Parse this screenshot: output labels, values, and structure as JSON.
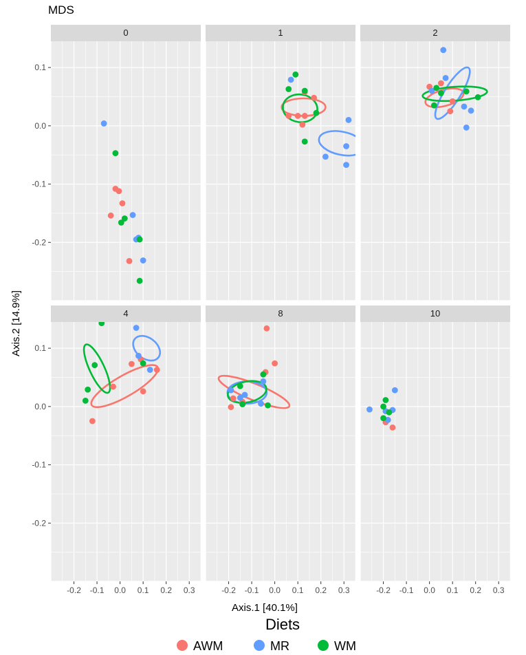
{
  "chart_data": {
    "type": "scatter",
    "title": "MDS",
    "xlabel": "Axis.1   [40.1%]",
    "ylabel": "Axis.2   [14.9%]",
    "xlim": [
      -0.3,
      0.35
    ],
    "ylim": [
      -0.3,
      0.145
    ],
    "x_ticks": [
      -0.2,
      -0.1,
      0.0,
      0.1,
      0.2,
      0.3
    ],
    "x_tick_labels": [
      "-0.2",
      "-0.1",
      "0.0",
      "0.1",
      "0.2",
      "0.3"
    ],
    "y_ticks": [
      -0.2,
      -0.1,
      0.0,
      0.1
    ],
    "y_tick_labels": [
      "-0.2",
      "-0.1",
      "0.0",
      "0.1"
    ],
    "legend": {
      "title": "Diets",
      "position": "bottom",
      "entries": [
        {
          "name": "AWM",
          "color": "#f8766d"
        },
        {
          "name": "MR",
          "color": "#619cff"
        },
        {
          "name": "WM",
          "color": "#00ba38"
        }
      ]
    },
    "panels": [
      {
        "label": "0",
        "series": [
          {
            "name": "AWM",
            "points": [
              [
                -0.02,
                -0.108
              ],
              [
                -0.005,
                -0.112
              ],
              [
                0.01,
                -0.133
              ],
              [
                -0.04,
                -0.154
              ],
              [
                0.04,
                -0.232
              ]
            ]
          },
          {
            "name": "MR",
            "points": [
              [
                -0.07,
                0.004
              ],
              [
                0.055,
                -0.153
              ],
              [
                0.07,
                -0.195
              ],
              [
                0.08,
                -0.192
              ],
              [
                0.1,
                -0.231
              ]
            ]
          },
          {
            "name": "WM",
            "points": [
              [
                -0.02,
                -0.047
              ],
              [
                0.02,
                -0.159
              ],
              [
                0.005,
                -0.166
              ],
              [
                0.085,
                -0.195
              ],
              [
                0.085,
                -0.266
              ]
            ]
          }
        ],
        "ellipses": []
      },
      {
        "label": "1",
        "series": [
          {
            "name": "AWM",
            "points": [
              [
                0.06,
                0.017
              ],
              [
                0.1,
                0.017
              ],
              [
                0.13,
                0.058
              ],
              [
                0.17,
                0.048
              ],
              [
                0.13,
                0.017
              ],
              [
                0.12,
                0.002
              ]
            ]
          },
          {
            "name": "MR",
            "points": [
              [
                0.22,
                -0.053
              ],
              [
                0.31,
                -0.035
              ],
              [
                0.32,
                0.01
              ],
              [
                0.31,
                -0.067
              ],
              [
                0.07,
                0.079
              ]
            ]
          },
          {
            "name": "WM",
            "points": [
              [
                0.09,
                0.088
              ],
              [
                0.06,
                0.063
              ],
              [
                0.13,
                0.06
              ],
              [
                0.18,
                0.022
              ],
              [
                0.13,
                -0.027
              ]
            ]
          }
        ],
        "ellipses": [
          {
            "name": "AWM",
            "cx": 0.125,
            "cy": 0.032,
            "rx": 0.095,
            "ry": 0.038,
            "angle": 0
          },
          {
            "name": "MR",
            "cx": 0.29,
            "cy": -0.03,
            "rx": 0.1,
            "ry": 0.05,
            "angle": -12
          },
          {
            "name": "WM",
            "cx": 0.11,
            "cy": 0.03,
            "rx": 0.075,
            "ry": 0.06,
            "angle": -8
          }
        ]
      },
      {
        "label": "2",
        "series": [
          {
            "name": "AWM",
            "points": [
              [
                0.0,
                0.067
              ],
              [
                0.05,
                0.073
              ],
              [
                0.1,
                0.042
              ],
              [
                0.09,
                0.025
              ]
            ]
          },
          {
            "name": "MR",
            "points": [
              [
                0.06,
                0.13
              ],
              [
                0.07,
                0.082
              ],
              [
                0.15,
                0.033
              ],
              [
                0.18,
                0.026
              ],
              [
                0.16,
                -0.003
              ],
              [
                0.01,
                0.06
              ]
            ]
          },
          {
            "name": "WM",
            "points": [
              [
                0.02,
                0.035
              ],
              [
                0.05,
                0.056
              ],
              [
                0.16,
                0.059
              ],
              [
                0.21,
                0.049
              ],
              [
                0.03,
                0.065
              ]
            ]
          }
        ],
        "ellipses": [
          {
            "name": "AWM",
            "cx": 0.065,
            "cy": 0.048,
            "rx": 0.085,
            "ry": 0.035,
            "angle": 15
          },
          {
            "name": "MR",
            "cx": 0.1,
            "cy": 0.056,
            "rx": 0.13,
            "ry": 0.035,
            "angle": 58
          },
          {
            "name": "WM",
            "cx": 0.11,
            "cy": 0.055,
            "rx": 0.14,
            "ry": 0.03,
            "angle": 4
          }
        ]
      },
      {
        "label": "4",
        "series": [
          {
            "name": "AWM",
            "points": [
              [
                -0.12,
                -0.025
              ],
              [
                -0.03,
                0.034
              ],
              [
                0.05,
                0.073
              ],
              [
                0.09,
                0.081
              ],
              [
                0.16,
                0.063
              ],
              [
                0.1,
                0.026
              ]
            ]
          },
          {
            "name": "MR",
            "points": [
              [
                0.07,
                0.135
              ],
              [
                0.08,
                0.087
              ],
              [
                0.13,
                0.063
              ]
            ]
          },
          {
            "name": "WM",
            "points": [
              [
                -0.08,
                0.143
              ],
              [
                -0.11,
                0.071
              ],
              [
                -0.14,
                0.029
              ],
              [
                -0.15,
                0.01
              ],
              [
                0.1,
                0.074
              ]
            ]
          }
        ],
        "ellipses": [
          {
            "name": "AWM",
            "cx": 0.02,
            "cy": 0.035,
            "rx": 0.165,
            "ry": 0.045,
            "angle": 30
          },
          {
            "name": "MR",
            "cx": 0.115,
            "cy": 0.1,
            "rx": 0.065,
            "ry": 0.045,
            "angle": -38
          },
          {
            "name": "WM",
            "cx": -0.1,
            "cy": 0.065,
            "rx": 0.115,
            "ry": 0.032,
            "angle": -65
          }
        ]
      },
      {
        "label": "8",
        "series": [
          {
            "name": "AWM",
            "points": [
              [
                -0.035,
                0.134
              ],
              [
                0.0,
                0.074
              ],
              [
                -0.04,
                0.059
              ],
              [
                -0.18,
                0.014
              ],
              [
                -0.14,
                0.008
              ],
              [
                -0.19,
                -0.001
              ]
            ]
          },
          {
            "name": "MR",
            "points": [
              [
                -0.19,
                0.028
              ],
              [
                -0.13,
                0.02
              ],
              [
                -0.15,
                0.015
              ],
              [
                -0.05,
                0.043
              ],
              [
                -0.06,
                0.005
              ]
            ]
          },
          {
            "name": "WM",
            "points": [
              [
                -0.15,
                0.035
              ],
              [
                -0.05,
                0.055
              ],
              [
                -0.03,
                0.002
              ],
              [
                -0.14,
                0.004
              ]
            ]
          }
        ],
        "ellipses": [
          {
            "name": "AWM",
            "cx": -0.09,
            "cy": 0.025,
            "rx": 0.165,
            "ry": 0.035,
            "angle": -22
          },
          {
            "name": "MR",
            "cx": -0.12,
            "cy": 0.024,
            "rx": 0.085,
            "ry": 0.048,
            "angle": 0
          },
          {
            "name": "WM",
            "cx": -0.12,
            "cy": 0.025,
            "rx": 0.085,
            "ry": 0.045,
            "angle": 12
          }
        ]
      },
      {
        "label": "10",
        "series": [
          {
            "name": "AWM",
            "points": [
              [
                -0.19,
                -0.027
              ],
              [
                -0.16,
                -0.036
              ]
            ]
          },
          {
            "name": "MR",
            "points": [
              [
                -0.26,
                -0.005
              ],
              [
                -0.15,
                0.028
              ],
              [
                -0.16,
                -0.006
              ],
              [
                -0.19,
                -0.008
              ],
              [
                -0.18,
                -0.023
              ]
            ]
          },
          {
            "name": "WM",
            "points": [
              [
                -0.19,
                0.011
              ],
              [
                -0.2,
                0.0
              ],
              [
                -0.175,
                -0.01
              ],
              [
                -0.2,
                -0.02
              ]
            ]
          }
        ],
        "ellipses": []
      }
    ]
  }
}
